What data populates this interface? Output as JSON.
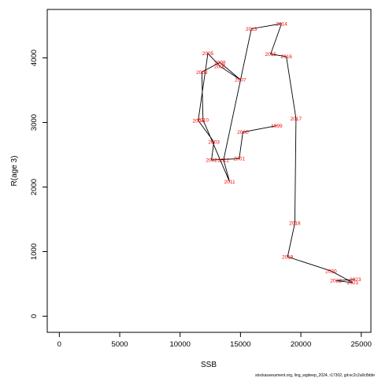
{
  "chart_data": {
    "type": "line",
    "title": "",
    "xlabel": "SSB",
    "ylabel": "R(age 3)",
    "xlim": [
      -1000,
      25800
    ],
    "ylim": [
      -250,
      4750
    ],
    "x_ticks": [
      0,
      5000,
      10000,
      15000,
      20000,
      25000
    ],
    "y_ticks": [
      0,
      1000,
      2000,
      3000,
      4000
    ],
    "x_tick_labels": [
      "0",
      "5000",
      "10000",
      "15000",
      "20000",
      "25000"
    ],
    "y_tick_labels": [
      "0",
      "1000",
      "2000",
      "3000",
      "4000"
    ],
    "grid": false,
    "line_color": "#000000",
    "label_color": "#ff0000",
    "caption": "stockassessment.org, ling_wgdeep_2024, r17302, git:ec2c2a0c8dde",
    "points": [
      {
        "year": "1999",
        "x": 18000,
        "y": 2950
      },
      {
        "year": "2000",
        "x": 15200,
        "y": 2850
      },
      {
        "year": "2001",
        "x": 14900,
        "y": 2440
      },
      {
        "year": "2002",
        "x": 12600,
        "y": 2420
      },
      {
        "year": "2003",
        "x": 12800,
        "y": 2700
      },
      {
        "year": "2004",
        "x": 11500,
        "y": 3030
      },
      {
        "year": "2005",
        "x": 12300,
        "y": 4070
      },
      {
        "year": "2006",
        "x": 13300,
        "y": 3870
      },
      {
        "year": "2007",
        "x": 15000,
        "y": 3660
      },
      {
        "year": "2008",
        "x": 13300,
        "y": 3930
      },
      {
        "year": "2009",
        "x": 11800,
        "y": 3780
      },
      {
        "year": "2010",
        "x": 11900,
        "y": 3040
      },
      {
        "year": "2011",
        "x": 14100,
        "y": 2080
      },
      {
        "year": "2012",
        "x": 13600,
        "y": 2420
      },
      {
        "year": "2013",
        "x": 15900,
        "y": 4450
      },
      {
        "year": "2014",
        "x": 18400,
        "y": 4530
      },
      {
        "year": "2015",
        "x": 17500,
        "y": 4060
      },
      {
        "year": "2016",
        "x": 18800,
        "y": 4020
      },
      {
        "year": "2017",
        "x": 19600,
        "y": 3060
      },
      {
        "year": "2018",
        "x": 19500,
        "y": 1440
      },
      {
        "year": "2019",
        "x": 18900,
        "y": 920
      },
      {
        "year": "2020",
        "x": 22500,
        "y": 700
      },
      {
        "year": "2021",
        "x": 24300,
        "y": 520
      },
      {
        "year": "2022",
        "x": 22900,
        "y": 550
      },
      {
        "year": "2023",
        "x": 24500,
        "y": 570
      }
    ]
  }
}
